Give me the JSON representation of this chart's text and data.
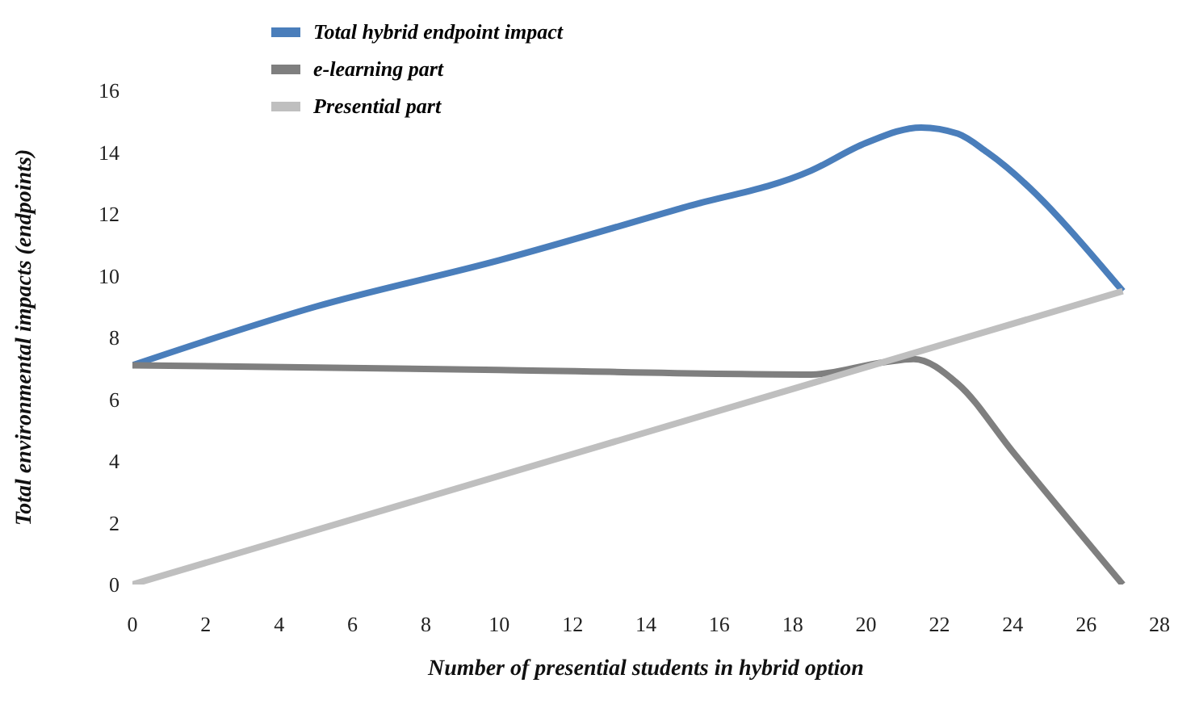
{
  "chart_data": {
    "type": "line",
    "xlabel": "Number of presential students in hybrid option",
    "ylabel": "Total environmental impacts (endpoints)",
    "xlim": [
      0,
      28
    ],
    "xticks": [
      0,
      2,
      4,
      6,
      8,
      10,
      12,
      14,
      16,
      18,
      20,
      22,
      24,
      26,
      28
    ],
    "ylim": [
      0,
      16
    ],
    "yticks": [
      0,
      2,
      4,
      6,
      8,
      10,
      12,
      14,
      16
    ],
    "grid": false,
    "legend": "top left",
    "marker": "none",
    "line_style": "solid",
    "series": [
      {
        "name": "Total hybrid endpoint impact",
        "color": "#4a7ebb",
        "x": [
          0,
          5,
          10,
          15,
          18.5,
          20,
          21.5,
          22.5,
          23.3,
          27
        ],
        "values": [
          7.1,
          9.0,
          10.5,
          12.2,
          13.4,
          14.3,
          14.8,
          14.6,
          14.0,
          9.5
        ]
      },
      {
        "name": "e-learning part",
        "color": "#7f7f7f",
        "x": [
          0,
          10,
          18.5,
          20.5,
          21.3,
          22.5,
          24,
          27
        ],
        "values": [
          7.1,
          6.95,
          6.8,
          7.2,
          7.3,
          6.5,
          4.3,
          0
        ]
      },
      {
        "name": "Presential part",
        "color": "#bfbfbf",
        "x": [
          0,
          27
        ],
        "values": [
          0,
          9.5
        ]
      }
    ]
  }
}
